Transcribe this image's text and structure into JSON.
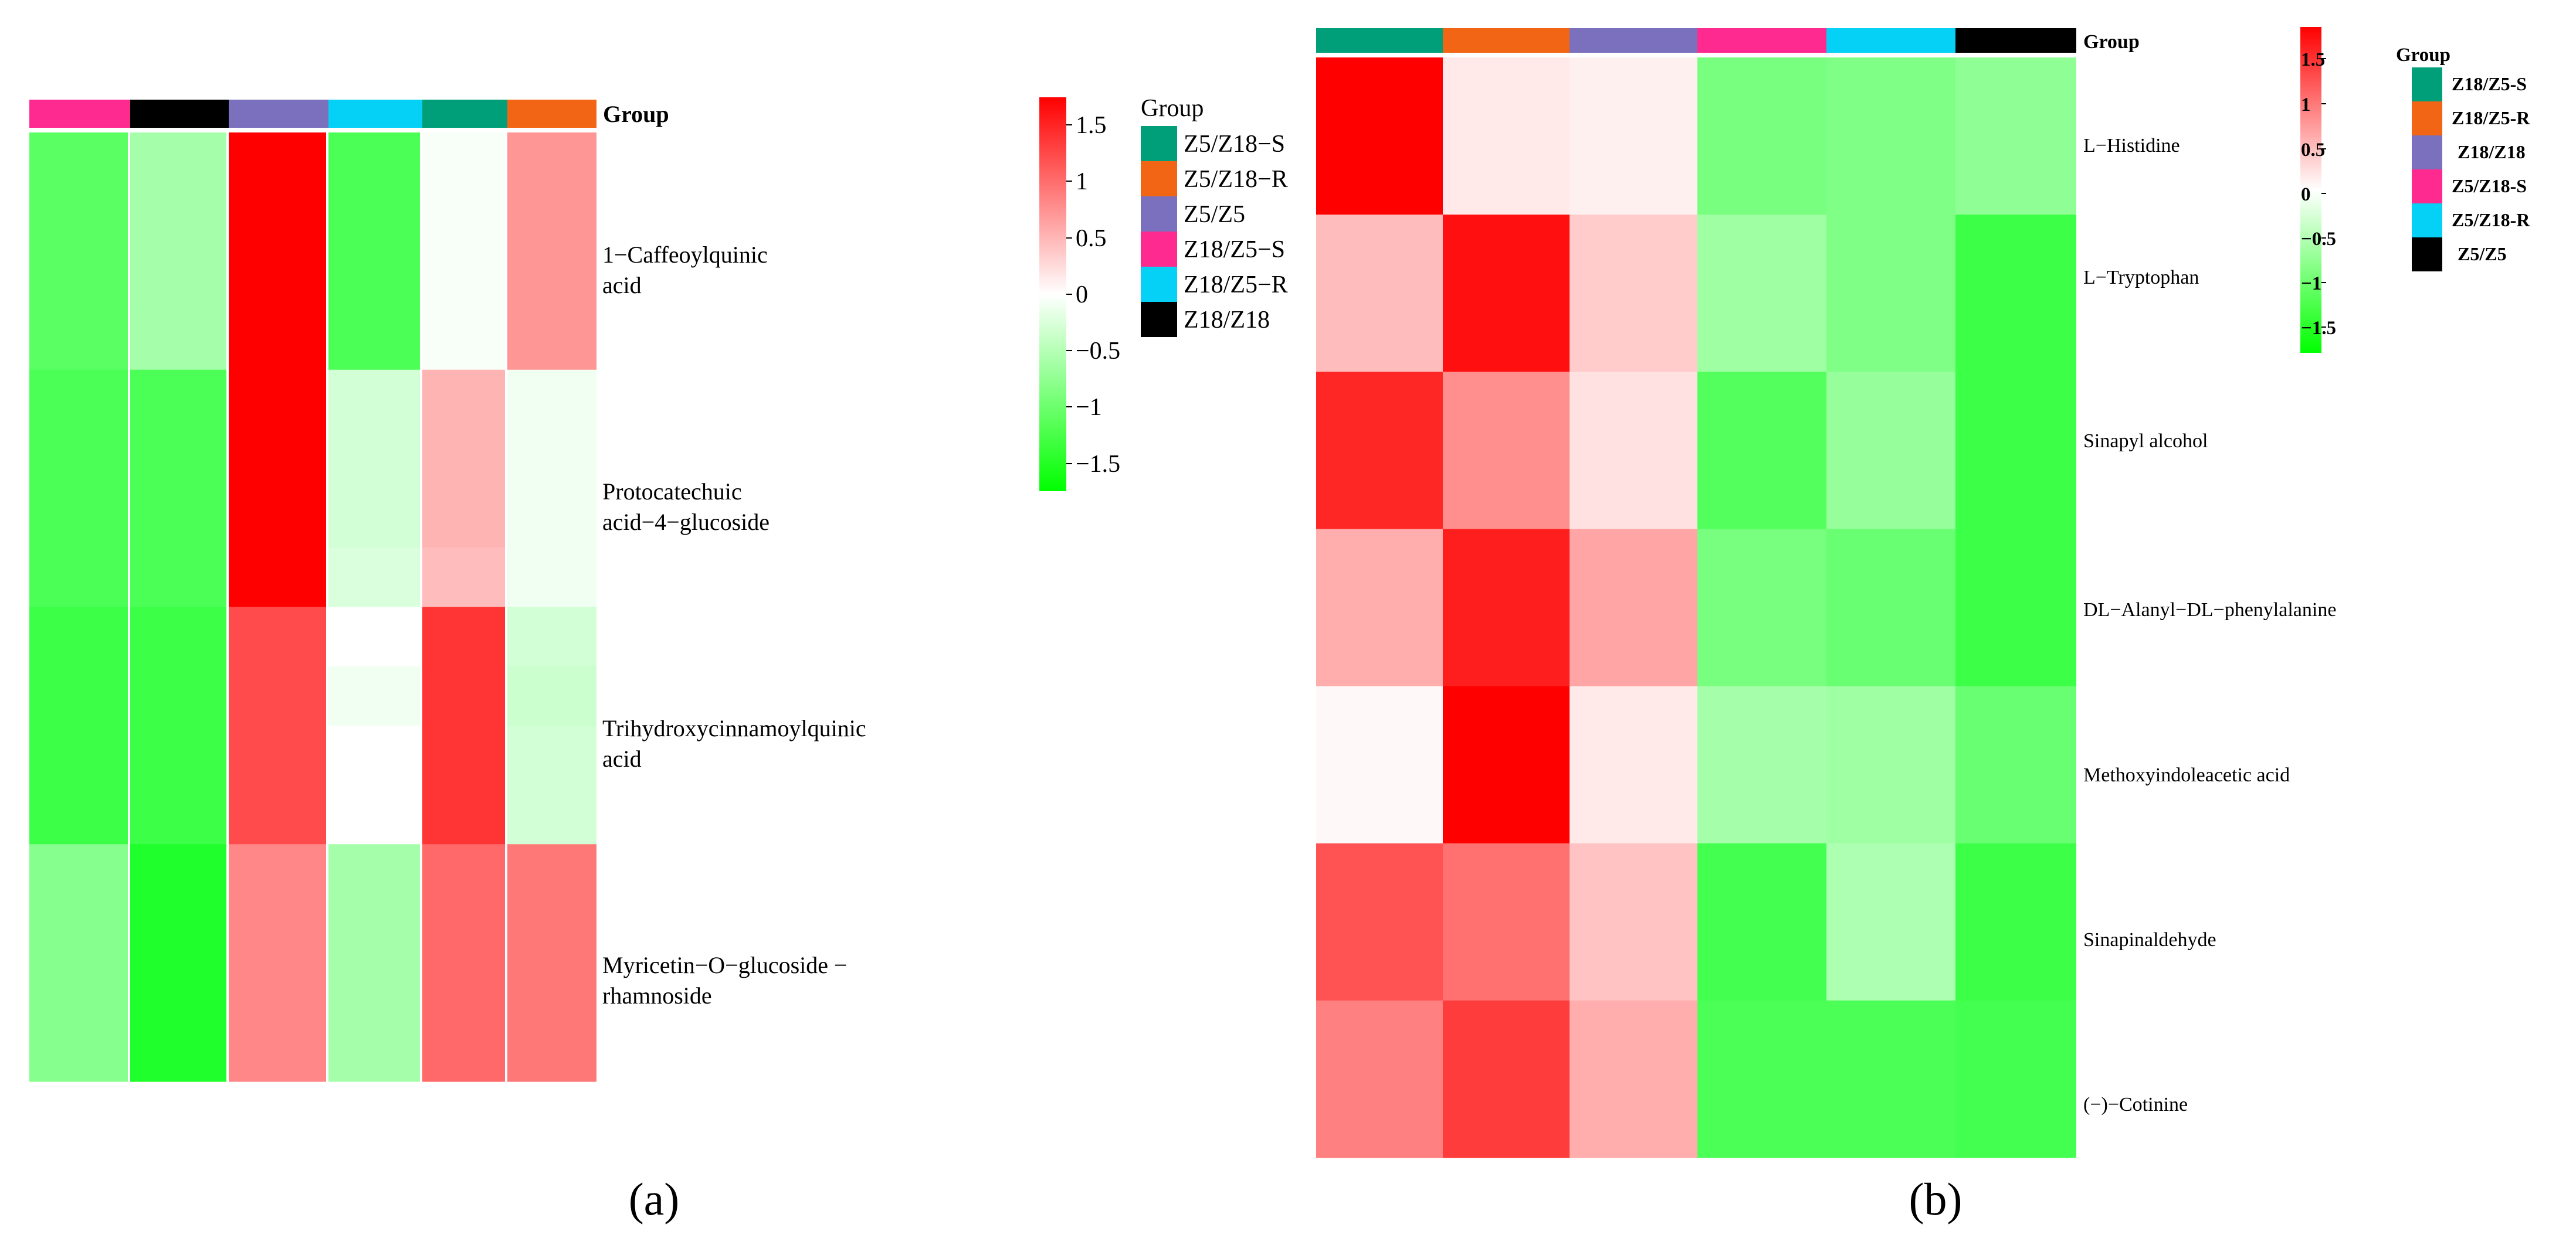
{
  "chart_data": [
    {
      "type": "heatmap",
      "panel_label": "(a)",
      "group_header": "Group",
      "column_groups": [
        "Z18/Z5-S",
        "Z18/Z18",
        "Z5/Z5",
        "Z18/Z5-R",
        "Z5/Z18-S",
        "Z5/Z18-R"
      ],
      "row_labels": [
        [
          "1−Caffeoylquinic",
          "acid"
        ],
        [
          "Protocatechuic",
          "acid−4−glucoside"
        ],
        [
          "Trihydroxycinnamoylquinic",
          "acid"
        ],
        [
          "Myricetin−O−glucoside −",
          "rhamnoside"
        ]
      ],
      "values": [
        [
          -1.1,
          -0.6,
          1.7,
          -1.2,
          -0.05,
          0.7
        ],
        [
          -1.1,
          -0.6,
          1.7,
          -1.2,
          -0.05,
          0.7
        ],
        [
          -1.1,
          -0.6,
          1.7,
          -1.2,
          -0.05,
          0.7
        ],
        [
          -1.1,
          -0.6,
          1.7,
          -1.2,
          -0.05,
          0.7
        ],
        [
          -1.2,
          -1.2,
          1.7,
          -0.3,
          0.5,
          -0.1
        ],
        [
          -1.2,
          -1.2,
          1.7,
          -0.3,
          0.5,
          -0.1
        ],
        [
          -1.2,
          -1.2,
          1.7,
          -0.3,
          0.5,
          -0.1
        ],
        [
          -1.2,
          -1.2,
          1.7,
          -0.25,
          0.45,
          -0.1
        ],
        [
          -1.3,
          -1.3,
          1.2,
          0.0,
          1.35,
          -0.3
        ],
        [
          -1.3,
          -1.3,
          1.2,
          -0.1,
          1.35,
          -0.35
        ],
        [
          -1.3,
          -1.3,
          1.2,
          0.0,
          1.35,
          -0.3
        ],
        [
          -1.3,
          -1.3,
          1.2,
          0.0,
          1.35,
          -0.3
        ],
        [
          -0.8,
          -1.5,
          0.8,
          -0.6,
          1.0,
          0.9
        ],
        [
          -0.8,
          -1.5,
          0.8,
          -0.6,
          1.0,
          0.9
        ],
        [
          -0.8,
          -1.5,
          0.8,
          -0.6,
          1.0,
          0.9
        ],
        [
          -0.8,
          -1.5,
          0.8,
          -0.6,
          1.0,
          0.9
        ]
      ],
      "colorbar": {
        "ticks": [
          "1.5",
          "1",
          "0.5",
          "0",
          "−0.5",
          "−1",
          "−1.5"
        ],
        "tick_values": [
          1.5,
          1,
          0.5,
          0,
          -0.5,
          -1,
          -1.5
        ],
        "range": [
          -1.7,
          1.7
        ]
      },
      "legend": {
        "title": "Group",
        "entries": [
          {
            "label": "Z5/Z18−S",
            "color": "#009f79"
          },
          {
            "label": "Z5/Z18−R",
            "color": "#f26514"
          },
          {
            "label": "Z5/Z5",
            "color": "#7b70bd"
          },
          {
            "label": "Z18/Z5−S",
            "color": "#ff2a8f"
          },
          {
            "label": "Z18/Z5−R",
            "color": "#05d0f5"
          },
          {
            "label": "Z18/Z18",
            "color": "#000000"
          }
        ]
      }
    },
    {
      "type": "heatmap",
      "panel_label": "(b)",
      "group_header": "Group",
      "column_groups": [
        "Z18/Z5-S",
        "Z18/Z5-R",
        "Z18/Z18",
        "Z5/Z18-S",
        "Z5/Z18-R",
        "Z5/Z5"
      ],
      "row_labels": [
        "L−Histidine",
        "L−Tryptophan",
        "Sinapyl alcohol",
        "DL−Alanyl−DL−phenylalanine",
        "Methoxyindoleacetic acid",
        "Sinapinaldehyde",
        "(−)−Cotinine"
      ],
      "values": [
        [
          1.7,
          0.15,
          0.1,
          -0.9,
          -0.85,
          -0.75
        ],
        [
          0.45,
          1.6,
          0.35,
          -0.65,
          -0.85,
          -1.3
        ],
        [
          1.45,
          0.75,
          0.2,
          -1.15,
          -0.7,
          -1.3
        ],
        [
          0.55,
          1.5,
          0.6,
          -0.9,
          -1.0,
          -1.3
        ],
        [
          0.05,
          1.7,
          0.15,
          -0.6,
          -0.65,
          -1.0
        ],
        [
          1.15,
          0.95,
          0.4,
          -1.25,
          -0.55,
          -1.3
        ],
        [
          0.85,
          1.3,
          0.55,
          -1.2,
          -1.2,
          -1.25
        ]
      ],
      "colorbar": {
        "ticks": [
          "1.5",
          "1",
          "0.5",
          "0",
          "−0.5",
          "−1",
          "−1.5"
        ],
        "tick_values": [
          1.5,
          1,
          0.5,
          0,
          -0.5,
          -1,
          -1.5
        ],
        "range": [
          -1.7,
          1.7
        ]
      },
      "legend": {
        "title": "Group",
        "entries": [
          {
            "label": "Z18/Z5-S",
            "color": "#009f79"
          },
          {
            "label": "Z18/Z5-R",
            "color": "#f26514"
          },
          {
            "label": "Z18/Z18",
            "color": "#7b70bd"
          },
          {
            "label": "Z5/Z18-S",
            "color": "#ff2a8f"
          },
          {
            "label": "Z5/Z18-R",
            "color": "#05d0f5"
          },
          {
            "label": "Z5/Z5",
            "color": "#000000"
          }
        ]
      }
    }
  ]
}
